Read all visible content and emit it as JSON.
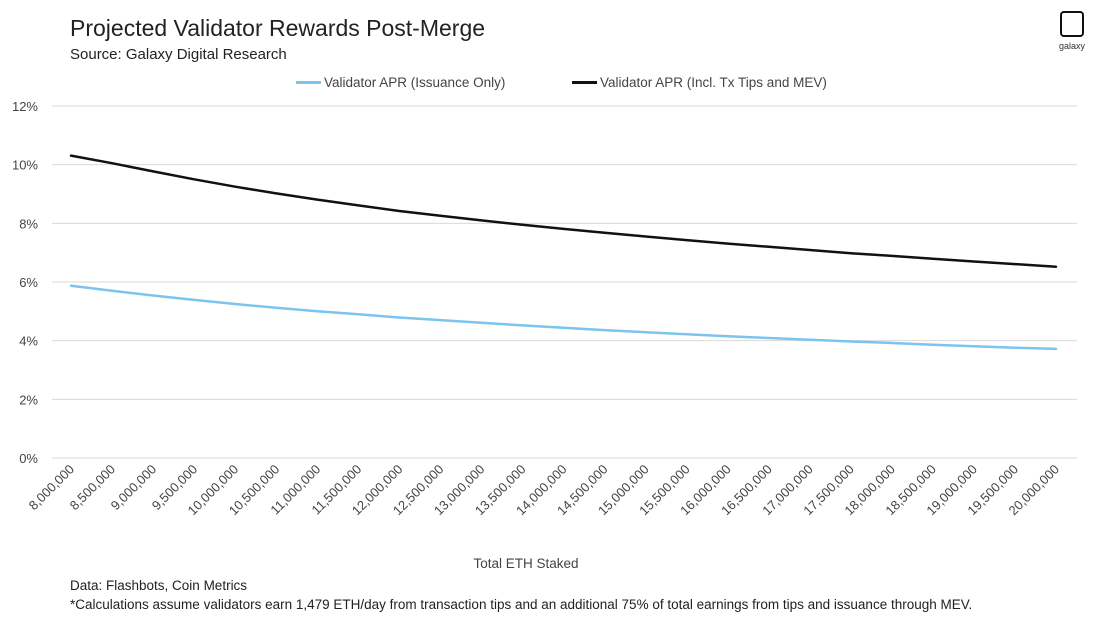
{
  "header": {
    "title": "Projected Validator Rewards Post-Merge",
    "subtitle": "Source: Galaxy Digital Research",
    "logo_text": "galaxy"
  },
  "footer": {
    "data_note": "Data: Flashbots, Coin Metrics",
    "calc_note": "*Calculations assume validators earn 1,479 ETH/day from transaction tips and an additional 75% of total earnings from tips and issuance through MEV."
  },
  "colors": {
    "issuance": "#7cc4ee",
    "mev": "#111111",
    "grid": "#d9d9d9"
  },
  "chart_data": {
    "type": "line",
    "xlabel": "Total ETH Staked",
    "ylabel": "",
    "ylim": [
      0,
      0.12
    ],
    "yticks": [
      "0%",
      "2%",
      "4%",
      "6%",
      "8%",
      "10%",
      "12%"
    ],
    "grid": true,
    "legend_position": "top-center",
    "categories": [
      "8,000,000",
      "8,500,000",
      "9,000,000",
      "9,500,000",
      "10,000,000",
      "10,500,000",
      "11,000,000",
      "11,500,000",
      "12,000,000",
      "12,500,000",
      "13,000,000",
      "13,500,000",
      "14,000,000",
      "14,500,000",
      "15,000,000",
      "15,500,000",
      "16,000,000",
      "16,500,000",
      "17,000,000",
      "17,500,000",
      "18,000,000",
      "18,500,000",
      "19,000,000",
      "19,500,000",
      "20,000,000"
    ],
    "series": [
      {
        "name": "Validator APR (Issuance Only)",
        "values": [
          0.0587,
          0.057,
          0.0554,
          0.0539,
          0.0525,
          0.0512,
          0.05,
          0.049,
          0.0479,
          0.047,
          0.0461,
          0.0452,
          0.0444,
          0.0436,
          0.0429,
          0.0422,
          0.0415,
          0.0409,
          0.0403,
          0.0397,
          0.0392,
          0.0386,
          0.0381,
          0.0376,
          0.0372
        ]
      },
      {
        "name": "Validator APR (Incl. Tx Tips and MEV)",
        "values": [
          0.1031,
          0.1005,
          0.0977,
          0.095,
          0.0925,
          0.0902,
          0.0881,
          0.0861,
          0.0842,
          0.0826,
          0.081,
          0.0795,
          0.0781,
          0.0768,
          0.0755,
          0.0743,
          0.0731,
          0.072,
          0.0709,
          0.0698,
          0.0689,
          0.0679,
          0.067,
          0.0661,
          0.0652
        ]
      }
    ]
  }
}
